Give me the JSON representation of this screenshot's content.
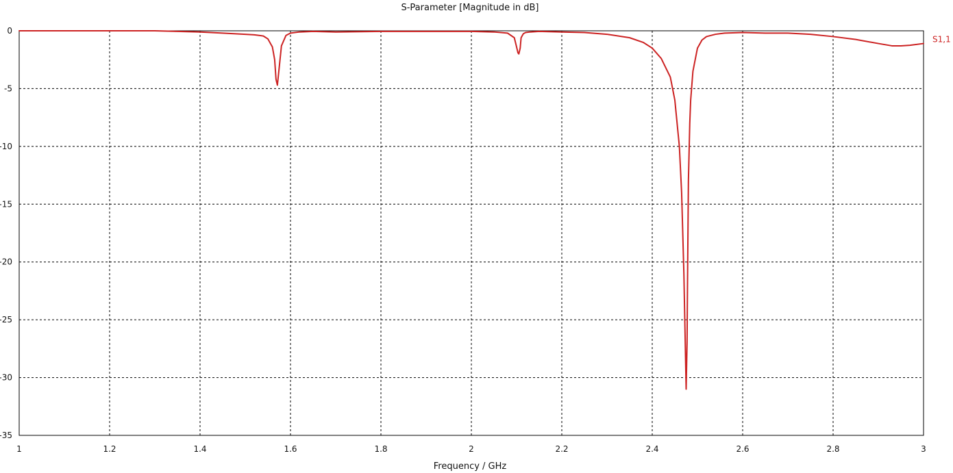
{
  "chart_data": {
    "type": "line",
    "title": "S-Parameter [Magnitude in dB]",
    "xlabel": "Frequency / GHz",
    "ylabel": "",
    "xlim": [
      1,
      3
    ],
    "ylim": [
      -35,
      0
    ],
    "grid": true,
    "x_ticks": [
      {
        "value": 1,
        "label": "1"
      },
      {
        "value": 1.2,
        "label": "1.2"
      },
      {
        "value": 1.4,
        "label": "1.4"
      },
      {
        "value": 1.6,
        "label": "1.6"
      },
      {
        "value": 1.8,
        "label": "1.8"
      },
      {
        "value": 2,
        "label": "2"
      },
      {
        "value": 2.2,
        "label": "2.2"
      },
      {
        "value": 2.4,
        "label": "2.4"
      },
      {
        "value": 2.6,
        "label": "2.6"
      },
      {
        "value": 2.8,
        "label": "2.8"
      },
      {
        "value": 3,
        "label": "3"
      }
    ],
    "y_ticks": [
      {
        "value": 0,
        "label": "0"
      },
      {
        "value": -5,
        "label": "-5"
      },
      {
        "value": -10,
        "label": "-10"
      },
      {
        "value": -15,
        "label": "-15"
      },
      {
        "value": -20,
        "label": "-20"
      },
      {
        "value": -25,
        "label": "-25"
      },
      {
        "value": -30,
        "label": "-30"
      },
      {
        "value": -35,
        "label": "-35"
      }
    ],
    "series": [
      {
        "name": "S1,1",
        "color": "#cc2222",
        "x": [
          1.0,
          1.1,
          1.2,
          1.3,
          1.35,
          1.4,
          1.45,
          1.5,
          1.52,
          1.54,
          1.55,
          1.56,
          1.565,
          1.568,
          1.571,
          1.575,
          1.58,
          1.59,
          1.6,
          1.62,
          1.65,
          1.7,
          1.8,
          1.9,
          2.0,
          2.05,
          2.08,
          2.095,
          2.1,
          2.103,
          2.105,
          2.108,
          2.11,
          2.115,
          2.12,
          2.13,
          2.15,
          2.2,
          2.25,
          2.3,
          2.35,
          2.38,
          2.4,
          2.42,
          2.44,
          2.45,
          2.46,
          2.465,
          2.47,
          2.472,
          2.475,
          2.477,
          2.478,
          2.48,
          2.483,
          2.485,
          2.49,
          2.5,
          2.51,
          2.52,
          2.54,
          2.56,
          2.6,
          2.65,
          2.7,
          2.75,
          2.8,
          2.85,
          2.9,
          2.93,
          2.95,
          2.97,
          3.0
        ],
        "y": [
          0,
          0,
          0,
          0,
          -0.05,
          -0.1,
          -0.2,
          -0.3,
          -0.35,
          -0.45,
          -0.7,
          -1.4,
          -2.5,
          -4.2,
          -4.7,
          -3.2,
          -1.3,
          -0.4,
          -0.2,
          -0.1,
          -0.05,
          -0.1,
          -0.05,
          -0.05,
          -0.05,
          -0.1,
          -0.2,
          -0.6,
          -1.4,
          -1.9,
          -2.0,
          -1.5,
          -0.6,
          -0.25,
          -0.15,
          -0.1,
          -0.05,
          -0.1,
          -0.15,
          -0.3,
          -0.6,
          -1.0,
          -1.5,
          -2.4,
          -4.0,
          -6.0,
          -10.0,
          -14.0,
          -21.0,
          -25.0,
          -31.0,
          -27.0,
          -22.0,
          -13.0,
          -8.0,
          -6.0,
          -3.5,
          -1.5,
          -0.8,
          -0.5,
          -0.3,
          -0.2,
          -0.15,
          -0.2,
          -0.2,
          -0.3,
          -0.5,
          -0.75,
          -1.1,
          -1.3,
          -1.3,
          -1.25,
          -1.1
        ]
      }
    ]
  }
}
